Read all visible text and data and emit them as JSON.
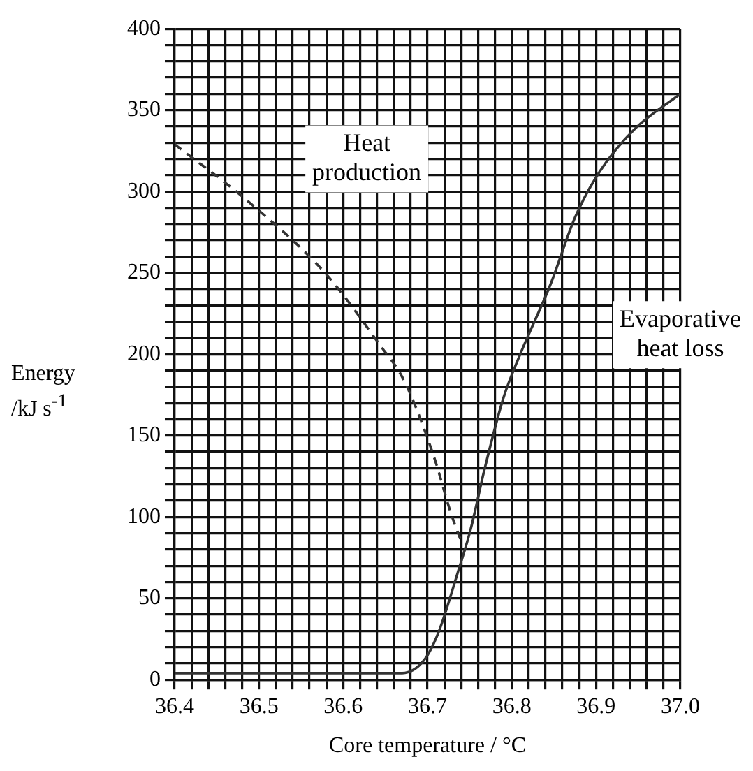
{
  "chart_data": {
    "type": "line",
    "xlabel": "Core temperature / °C",
    "ylabel": "Energy\n/kJ s$^{-1}$",
    "xlim": [
      36.4,
      37.0
    ],
    "ylim": [
      0,
      400
    ],
    "xticks": [
      36.4,
      {
        "value": 36.42,
        "label": null
      },
      {
        "value": 36.44,
        "label": null
      },
      {
        "value": 36.46,
        "label": null
      },
      {
        "value": 36.48,
        "label": null
      },
      36.5,
      {
        "value": 36.52,
        "label": null
      },
      {
        "value": 36.54,
        "label": null
      },
      {
        "value": 36.56,
        "label": null
      },
      {
        "value": 36.58,
        "label": null
      },
      36.6,
      {
        "value": 36.62,
        "label": null
      },
      {
        "value": 36.64,
        "label": null
      },
      {
        "value": 36.66,
        "label": null
      },
      {
        "value": 36.68,
        "label": null
      },
      36.7,
      {
        "value": 36.72,
        "label": null
      },
      {
        "value": 36.74,
        "label": null
      },
      {
        "value": 36.76,
        "label": null
      },
      {
        "value": 36.78,
        "label": null
      },
      36.8,
      {
        "value": 36.82,
        "label": null
      },
      {
        "value": 36.84,
        "label": null
      },
      {
        "value": 36.86,
        "label": null
      },
      {
        "value": 36.88,
        "label": null
      },
      36.9,
      {
        "value": 36.92,
        "label": null
      },
      {
        "value": 36.94,
        "label": null
      },
      {
        "value": 36.96,
        "label": null
      },
      {
        "value": 36.98,
        "label": null
      },
      {
        "value": 37.0,
        "label": "37.0"
      }
    ],
    "yticks": [
      0,
      {
        "value": 10,
        "label": null
      },
      {
        "value": 20,
        "label": null
      },
      {
        "value": 30,
        "label": null
      },
      {
        "value": 40,
        "label": null
      },
      50,
      {
        "value": 60,
        "label": null
      },
      {
        "value": 70,
        "label": null
      },
      {
        "value": 80,
        "label": null
      },
      {
        "value": 90,
        "label": null
      },
      100,
      {
        "value": 110,
        "label": null
      },
      {
        "value": 120,
        "label": null
      },
      {
        "value": 130,
        "label": null
      },
      {
        "value": 140,
        "label": null
      },
      150,
      {
        "value": 160,
        "label": null
      },
      {
        "value": 170,
        "label": null
      },
      {
        "value": 180,
        "label": null
      },
      {
        "value": 190,
        "label": null
      },
      200,
      {
        "value": 210,
        "label": null
      },
      {
        "value": 220,
        "label": null
      },
      {
        "value": 230,
        "label": null
      },
      {
        "value": 240,
        "label": null
      },
      250,
      {
        "value": 260,
        "label": null
      },
      {
        "value": 270,
        "label": null
      },
      {
        "value": 280,
        "label": null
      },
      {
        "value": 290,
        "label": null
      },
      300,
      {
        "value": 310,
        "label": null
      },
      {
        "value": 320,
        "label": null
      },
      {
        "value": 330,
        "label": null
      },
      {
        "value": 340,
        "label": null
      },
      350,
      {
        "value": 360,
        "label": null
      },
      {
        "value": 370,
        "label": null
      },
      {
        "value": 380,
        "label": null
      },
      {
        "value": 390,
        "label": null
      },
      400
    ],
    "grid": true,
    "legend": false,
    "marker": "none",
    "series": [
      {
        "name": "Heat production",
        "color": "#333333",
        "line_style": "dashed",
        "x": [
          36.4,
          36.487,
          36.58,
          36.643,
          36.672,
          36.707,
          36.728,
          36.74
        ],
        "values": [
          329,
          294,
          249,
          206,
          184,
          138,
          102,
          85
        ]
      },
      {
        "name": "Evaporative heat loss",
        "color": "#333333",
        "line_style": "solid",
        "x": [
          36.4,
          36.5,
          36.6,
          36.67,
          36.696,
          36.713,
          36.736,
          36.751,
          36.768,
          36.79,
          36.81,
          36.846,
          36.875,
          36.904,
          36.945,
          37.0
        ],
        "values": [
          4,
          4,
          4,
          4,
          12,
          29,
          66,
          92,
          130,
          173,
          200,
          243,
          284,
          312,
          338,
          360
        ]
      }
    ]
  }
}
